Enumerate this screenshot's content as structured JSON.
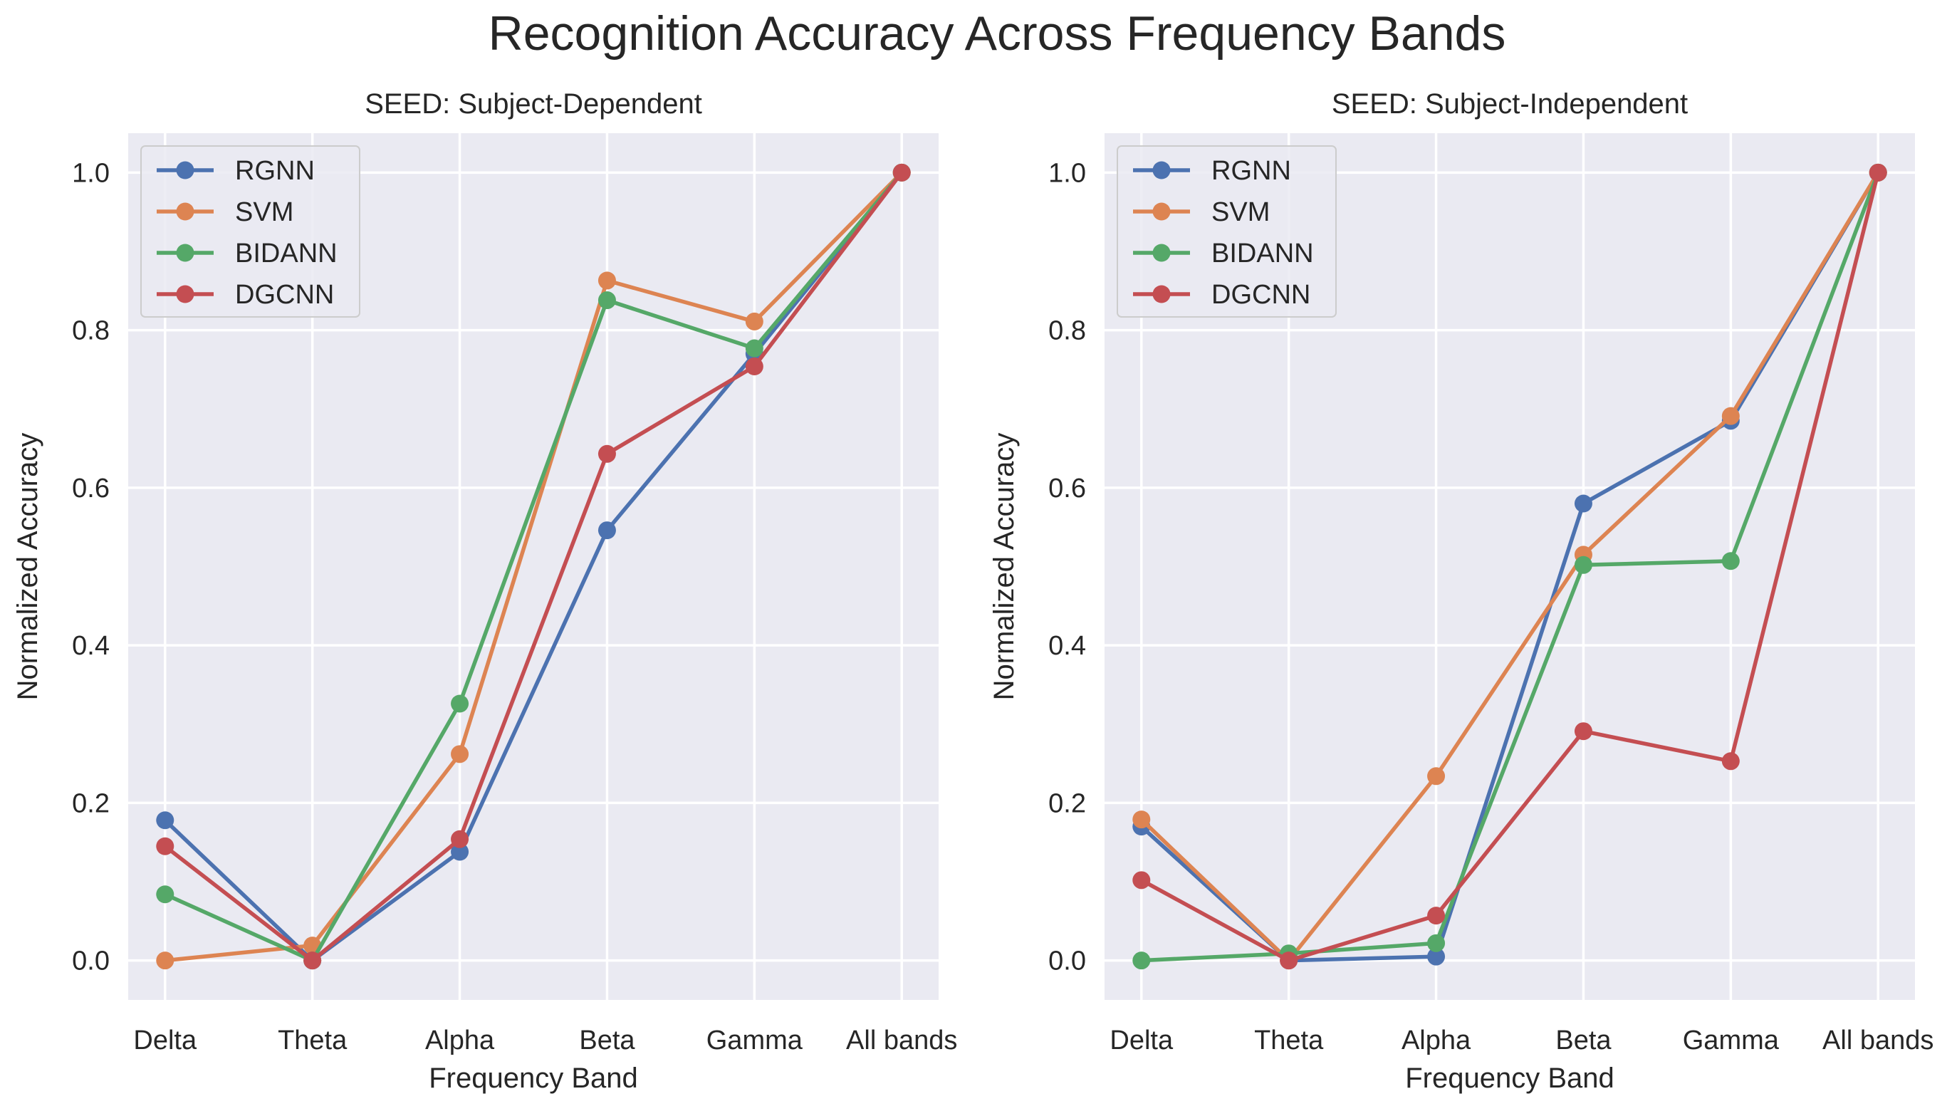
{
  "figure": {
    "title": "Recognition Accuracy Across Frequency Bands"
  },
  "colors": {
    "background": "#eaeaf2",
    "grid": "#ffffff",
    "text": "#262626",
    "RGNN": "#4c72b0",
    "SVM": "#dd8452",
    "BIDANN": "#55a868",
    "DGCNN": "#c44e52"
  },
  "chart_data": [
    {
      "type": "line",
      "title": "SEED: Subject-Dependent",
      "xlabel": "Frequency Band",
      "ylabel": "Normalized Accuracy",
      "categories": [
        "Delta",
        "Theta",
        "Alpha",
        "Beta",
        "Gamma",
        "All bands"
      ],
      "ylim": [
        -0.05,
        1.05
      ],
      "yticks": [
        0.0,
        0.2,
        0.4,
        0.6,
        0.8,
        1.0
      ],
      "ytick_labels": [
        "0.0",
        "0.2",
        "0.4",
        "0.6",
        "0.8",
        "1.0"
      ],
      "grid": true,
      "legend": "top-left",
      "series": [
        {
          "name": "RGNN",
          "values": [
            0.178,
            0.0,
            0.138,
            0.546,
            0.77,
            1.0
          ]
        },
        {
          "name": "SVM",
          "values": [
            0.0,
            0.019,
            0.262,
            0.863,
            0.811,
            1.0
          ]
        },
        {
          "name": "BIDANN",
          "values": [
            0.084,
            0.0,
            0.326,
            0.838,
            0.777,
            1.0
          ]
        },
        {
          "name": "DGCNN",
          "values": [
            0.145,
            0.0,
            0.154,
            0.643,
            0.754,
            1.0
          ]
        }
      ]
    },
    {
      "type": "line",
      "title": "SEED: Subject-Independent",
      "xlabel": "Frequency Band",
      "ylabel": "Normalized Accuracy",
      "categories": [
        "Delta",
        "Theta",
        "Alpha",
        "Beta",
        "Gamma",
        "All bands"
      ],
      "ylim": [
        -0.05,
        1.05
      ],
      "yticks": [
        0.0,
        0.2,
        0.4,
        0.6,
        0.8,
        1.0
      ],
      "ytick_labels": [
        "0.0",
        "0.2",
        "0.4",
        "0.6",
        "0.8",
        "1.0"
      ],
      "grid": true,
      "legend": "top-left",
      "series": [
        {
          "name": "RGNN",
          "values": [
            0.17,
            0.0,
            0.005,
            0.58,
            0.685,
            1.0
          ]
        },
        {
          "name": "SVM",
          "values": [
            0.179,
            0.0,
            0.234,
            0.515,
            0.691,
            1.0
          ]
        },
        {
          "name": "BIDANN",
          "values": [
            0.0,
            0.009,
            0.022,
            0.502,
            0.507,
            1.0
          ]
        },
        {
          "name": "DGCNN",
          "values": [
            0.102,
            0.0,
            0.057,
            0.291,
            0.253,
            1.0
          ]
        }
      ]
    }
  ]
}
